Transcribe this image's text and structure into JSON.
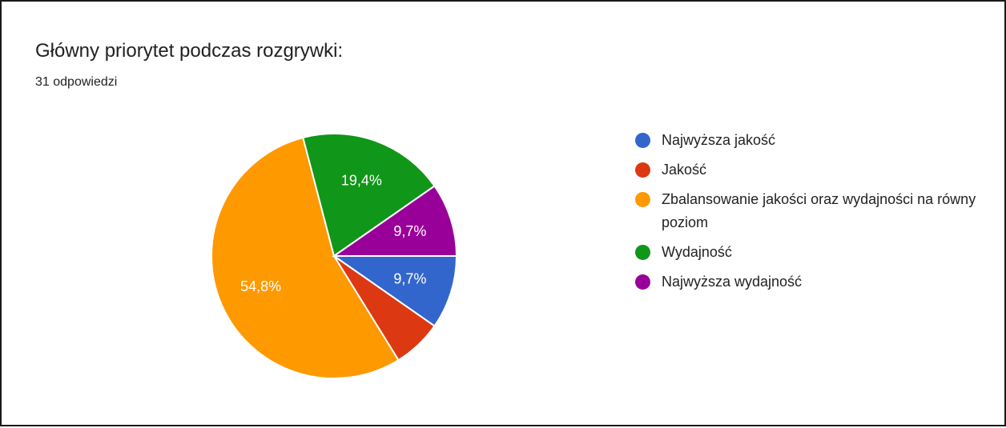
{
  "chart_data": {
    "type": "pie",
    "title": "Główny priorytet podczas rozgrywki:",
    "subtitle": "31 odpowiedzi",
    "slices": [
      {
        "label": "Najwyższa jakość",
        "percent": 9.7,
        "display": "9,7%",
        "color": "#3366cc"
      },
      {
        "label": "Jakość",
        "percent": 6.5,
        "display": "",
        "color": "#dc3912"
      },
      {
        "label": "Zbalansowanie jakości oraz wydajności na równy poziom",
        "percent": 54.8,
        "display": "54,8%",
        "color": "#ff9900"
      },
      {
        "label": "Wydajność",
        "percent": 19.4,
        "display": "19,4%",
        "color": "#109618"
      },
      {
        "label": "Najwyższa wydajność",
        "percent": 9.7,
        "display": "9,7%",
        "color": "#990099"
      }
    ],
    "legend_position": "right"
  }
}
